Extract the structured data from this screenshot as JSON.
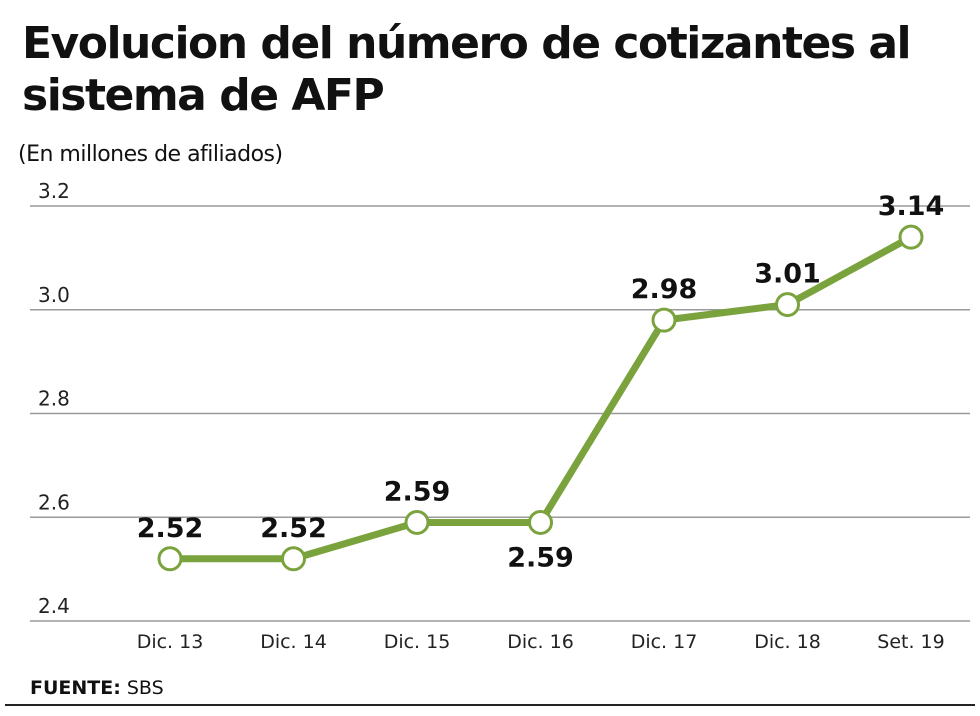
{
  "chart_data": {
    "type": "line",
    "title": "Evolucion del número de cotizantes al sistema de AFP",
    "subtitle": "(En millones de afiliados)",
    "categories": [
      "Dic. 13",
      "Dic. 14",
      "Dic. 15",
      "Dic. 16",
      "Dic. 17",
      "Dic. 18",
      "Set. 19"
    ],
    "values": [
      2.52,
      2.52,
      2.59,
      2.59,
      2.98,
      3.01,
      3.14
    ],
    "data_labels": [
      "2.52",
      "2.52",
      "2.59",
      "2.59",
      "2.98",
      "3.01",
      "3.14"
    ],
    "ylim": [
      2.4,
      3.2
    ],
    "yticks": [
      "2.4",
      "2.6",
      "2.8",
      "3.0",
      "3.2"
    ],
    "grid": true,
    "line_color": "#7aa33e",
    "grid_color": "#9a9a9a"
  },
  "source": {
    "label": "FUENTE:",
    "value": "SBS"
  }
}
